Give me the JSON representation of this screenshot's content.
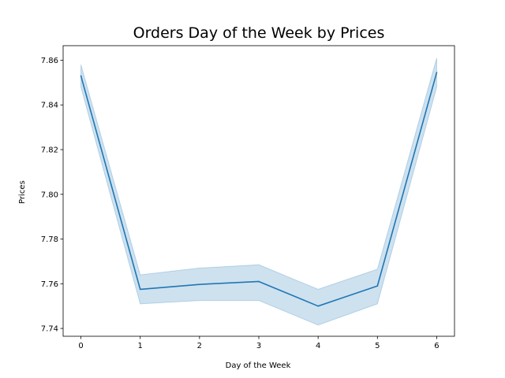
{
  "chart_data": {
    "type": "line",
    "title": "Orders Day of the Week by Prices",
    "xlabel": "Day of the Week",
    "ylabel": "Prices",
    "x": [
      0,
      1,
      2,
      3,
      4,
      5,
      6
    ],
    "xticks": [
      "0",
      "1",
      "2",
      "3",
      "4",
      "5",
      "6"
    ],
    "yticks": [
      "7.74",
      "7.76",
      "7.78",
      "7.80",
      "7.82",
      "7.84",
      "7.86"
    ],
    "xlim": [
      -0.3,
      6.3
    ],
    "ylim": [
      7.7365,
      7.8665
    ],
    "grid": false,
    "series": [
      {
        "values": [
          7.853,
          7.7575,
          7.7597,
          7.761,
          7.75,
          7.759,
          7.8545
        ],
        "ci_lower": [
          7.848,
          7.751,
          7.7525,
          7.7525,
          7.7415,
          7.751,
          7.848
        ],
        "ci_upper": [
          7.858,
          7.764,
          7.767,
          7.7685,
          7.7575,
          7.7665,
          7.861
        ],
        "color": "#1f77b4",
        "band_color": "#1f77b4"
      }
    ]
  }
}
